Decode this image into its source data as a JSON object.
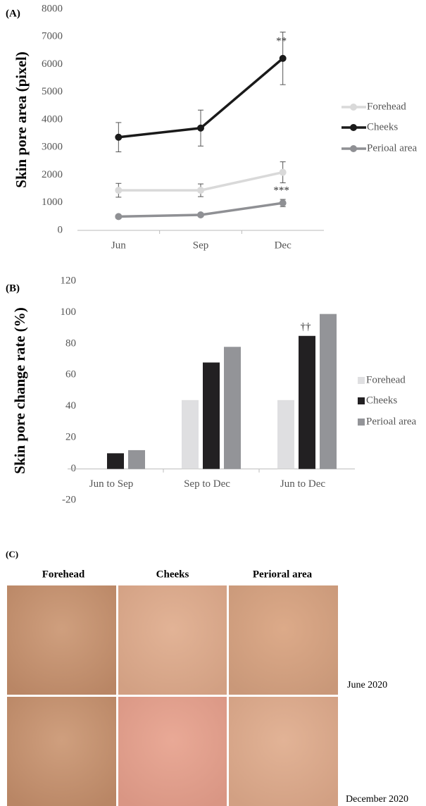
{
  "chart_data": [
    {
      "type": "line",
      "panel": "(A)",
      "y_label": "Skin pore area (pixel)",
      "categories": [
        "Jun",
        "Sep",
        "Dec"
      ],
      "series": [
        {
          "name": "Forehead",
          "color": "#d9d9d9",
          "values": [
            1450,
            1450,
            2100
          ],
          "errors": [
            250,
            230,
            380
          ]
        },
        {
          "name": "Cheeks",
          "color": "#1a1a1a",
          "values": [
            3370,
            3700,
            6220
          ],
          "errors": [
            530,
            650,
            950
          ]
        },
        {
          "name": "Perioal area",
          "color": "#8f9094",
          "values": [
            500,
            560,
            990
          ],
          "errors": [
            60,
            60,
            130
          ]
        }
      ],
      "annotations": [
        "**",
        "***"
      ],
      "ylim": [
        0,
        8000
      ],
      "yticks": [
        0,
        1000,
        2000,
        3000,
        4000,
        5000,
        6000,
        7000,
        8000
      ],
      "legend": "right"
    },
    {
      "type": "bar",
      "panel": "(B)",
      "y_label": "Skin pore change rate (%)",
      "categories": [
        "Jun to Sep",
        "Sep to Dec",
        "Jun to Dec"
      ],
      "series": [
        {
          "name": "Forehead",
          "color": "#dfdfe1",
          "values": [
            0,
            44,
            44
          ]
        },
        {
          "name": "Cheeks",
          "color": "#222022",
          "values": [
            10,
            68,
            85
          ]
        },
        {
          "name": "Perioal area",
          "color": "#939498",
          "values": [
            12,
            78,
            99
          ]
        }
      ],
      "annotations": [
        "††"
      ],
      "ylim": [
        -20,
        120
      ],
      "yticks": [
        -20,
        0,
        20,
        40,
        60,
        80,
        100,
        120
      ],
      "legend": "right"
    }
  ],
  "panel_c": {
    "label": "(C)",
    "columns": [
      "Forehead",
      "Cheeks",
      "Perioral area"
    ],
    "rows": [
      "June 2020",
      "December 2020"
    ]
  }
}
